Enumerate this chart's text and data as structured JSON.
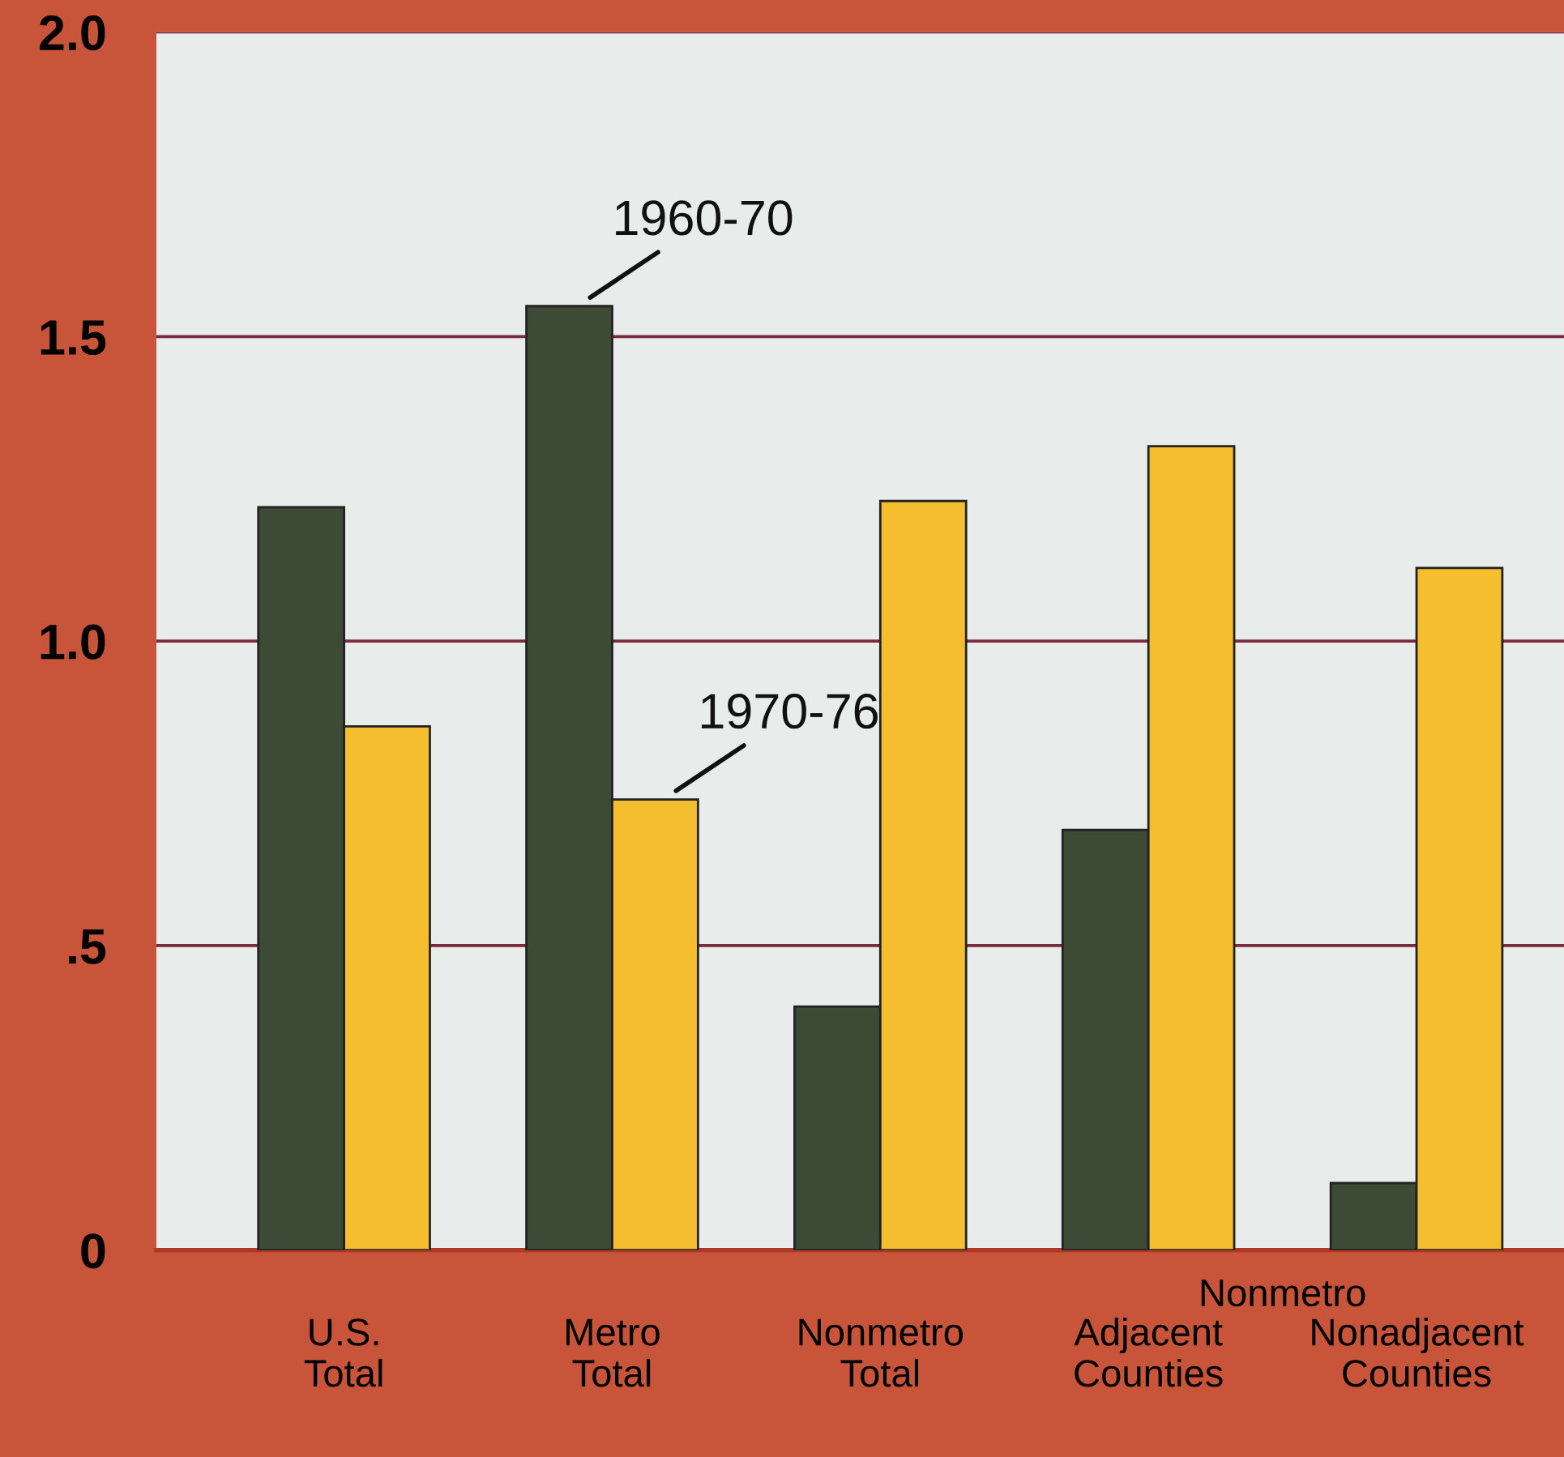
{
  "chart_data": {
    "type": "bar",
    "categories": [
      "U.S.\nTotal",
      "Metro\nTotal",
      "Nonmetro\nTotal",
      "Adjacent\nCounties",
      "Nonadjacent\nCounties"
    ],
    "series": [
      {
        "name": "1960-70",
        "color": "#3d4a35",
        "values": [
          1.22,
          1.55,
          0.4,
          0.69,
          0.11
        ]
      },
      {
        "name": "1970-76",
        "color": "#f5be2e",
        "values": [
          0.86,
          0.74,
          1.23,
          1.32,
          1.12
        ]
      }
    ],
    "ylim": [
      0,
      2.0
    ],
    "yticks": [
      0,
      {
        "value": 0.5,
        "label": ".5"
      },
      {
        "value": 1,
        "label": "1.0"
      },
      {
        "value": 1.5,
        "label": "1.5"
      },
      {
        "value": 2,
        "label": "2.0"
      }
    ],
    "grid": "y",
    "annotations": [
      "Nonmetro"
    ]
  }
}
